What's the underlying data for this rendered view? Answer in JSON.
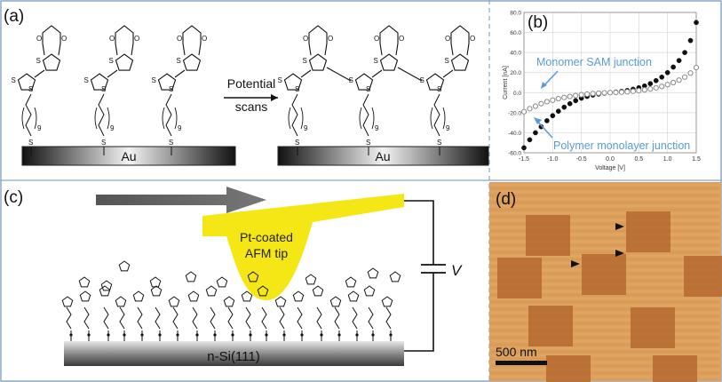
{
  "panel_a": {
    "label": "(a)",
    "arrow_label_line1": "Potential",
    "arrow_label_line2": "scans",
    "substrate_left": "Au",
    "substrate_right": "Au",
    "subscript_9": "9",
    "atom_S": "S",
    "atom_O": "O"
  },
  "panel_b": {
    "label": "(b)",
    "annotation_monomer": "Monomer SAM junction",
    "annotation_polymer": "Polymer monolayer junction"
  },
  "panel_c": {
    "label": "(c)",
    "tip_line1": "Pt-coated",
    "tip_line2": "AFM tip",
    "voltage_symbol": "V",
    "substrate": "n-Si(111)"
  },
  "panel_d": {
    "label": "(d)",
    "scale_bar": "500 nm"
  },
  "chart_data": {
    "type": "scatter",
    "xlabel": "Voltage [V]",
    "ylabel": "Current [nA]",
    "xlim": [
      -1.5,
      1.5
    ],
    "ylim": [
      -60,
      80
    ],
    "xticks": [
      "-1.5",
      "-1.0",
      "-0.5",
      "0.0",
      "0.5",
      "1.0",
      "1.5"
    ],
    "yticks": [
      "-60.0",
      "-40.0",
      "-20.0",
      "0.0",
      "20.0",
      "40.0",
      "60.0",
      "80.0"
    ],
    "series": [
      {
        "marker": "filled",
        "color": "#111111",
        "x": [
          -1.5,
          -1.4,
          -1.3,
          -1.2,
          -1.1,
          -1.0,
          -0.9,
          -0.8,
          -0.7,
          -0.6,
          -0.5,
          -0.4,
          -0.3,
          -0.2,
          -0.1,
          0.0,
          0.1,
          0.2,
          0.3,
          0.4,
          0.5,
          0.6,
          0.7,
          0.8,
          0.9,
          1.0,
          1.1,
          1.2,
          1.3,
          1.4,
          1.5
        ],
        "y": [
          -55,
          -47,
          -40,
          -34,
          -28,
          -23,
          -18.5,
          -14.5,
          -11,
          -8,
          -5.5,
          -3.8,
          -2.4,
          -1.4,
          -0.6,
          0,
          0.6,
          1.3,
          2.2,
          3.4,
          4.9,
          6.7,
          9,
          12,
          15.5,
          20,
          25.5,
          32,
          40,
          52,
          70
        ]
      },
      {
        "marker": "open",
        "color": "#888888",
        "x": [
          -1.5,
          -1.4,
          -1.3,
          -1.2,
          -1.1,
          -1.0,
          -0.9,
          -0.8,
          -0.7,
          -0.6,
          -0.5,
          -0.4,
          -0.3,
          -0.2,
          -0.1,
          0.0,
          0.1,
          0.2,
          0.3,
          0.4,
          0.5,
          0.6,
          0.7,
          0.8,
          0.9,
          1.0,
          1.1,
          1.2,
          1.3,
          1.4,
          1.5
        ],
        "y": [
          -19,
          -16,
          -13.5,
          -11,
          -9,
          -7.5,
          -6,
          -4.8,
          -3.8,
          -2.9,
          -2.1,
          -1.5,
          -0.9,
          -0.5,
          -0.2,
          0,
          0.2,
          0.5,
          0.9,
          1.4,
          2,
          2.8,
          3.7,
          4.8,
          6.2,
          8,
          10,
          12.5,
          15.5,
          19.5,
          25
        ]
      }
    ]
  }
}
